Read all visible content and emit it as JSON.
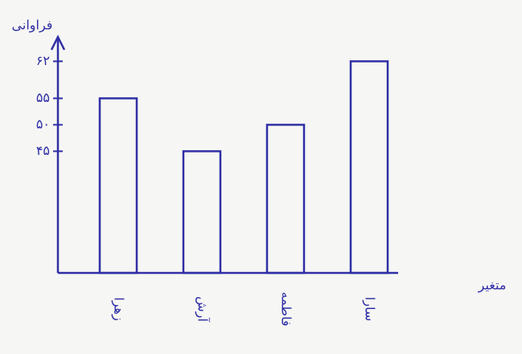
{
  "chart_data": {
    "type": "bar",
    "ylabel": "فراوانی",
    "xlabel": "متغیر",
    "categories": [
      "زهرا",
      "آرش",
      "فاطمه",
      "سارا"
    ],
    "values": [
      55,
      45,
      50,
      62
    ],
    "color": "#2f2fa6",
    "ylim": [
      22,
      66
    ],
    "yticks": [
      {
        "value": 45,
        "label": "۴۵"
      },
      {
        "value": 50,
        "label": "۵۰"
      },
      {
        "value": 55,
        "label": "۵۵"
      },
      {
        "value": 62,
        "label": "۶۲"
      }
    ],
    "grid": false
  }
}
